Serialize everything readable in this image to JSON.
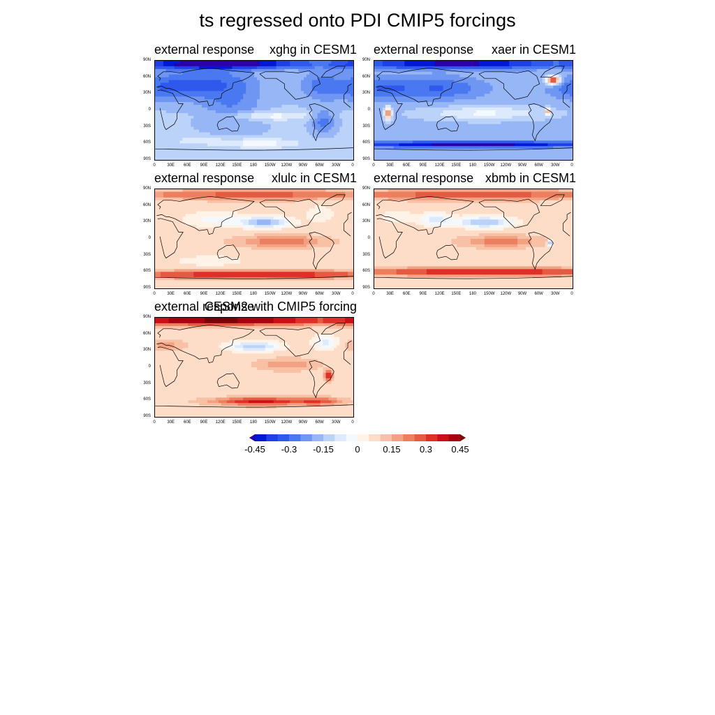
{
  "figure": {
    "title": "ts regressed onto PDI CMIP5 forcings"
  },
  "lat_ticks": [
    "90N",
    "60N",
    "30N",
    "0",
    "30S",
    "60S",
    "90S"
  ],
  "lon_ticks": [
    "0",
    "30E",
    "60E",
    "90E",
    "120E",
    "150E",
    "180",
    "150W",
    "120W",
    "90W",
    "60W",
    "30W",
    "0"
  ],
  "panels": [
    {
      "left_title": "external response",
      "right_title": "xghg in CESM1",
      "pattern": "ghg"
    },
    {
      "left_title": "external response",
      "right_title": "xaer in CESM1",
      "pattern": "aer"
    },
    {
      "left_title": "external response",
      "right_title": "xlulc in CESM1",
      "pattern": "lulc"
    },
    {
      "left_title": "external response",
      "right_title": "xbmb in CESM1",
      "pattern": "bmb"
    },
    {
      "left_title": "external response",
      "right_title": "CESM2 with CMIP5 forcing",
      "pattern": "cesm2"
    }
  ],
  "colorbar": {
    "levels": [
      -0.45,
      -0.4,
      -0.35,
      -0.3,
      -0.25,
      -0.2,
      -0.15,
      -0.1,
      -0.05,
      0,
      0.05,
      0.1,
      0.15,
      0.2,
      0.25,
      0.3,
      0.35,
      0.4,
      0.45
    ],
    "labels": [
      "-0.45",
      "-0.3",
      "-0.15",
      "0",
      "0.15",
      "0.3",
      "0.45"
    ],
    "colors": [
      "#2a00a8",
      "#0019d6",
      "#1f3fe8",
      "#2f59ec",
      "#4a78f0",
      "#6f96f3",
      "#97b6f6",
      "#bcd3f9",
      "#dde9fc",
      "#f4f9ff",
      "#fff3e8",
      "#fddcc8",
      "#f8c0a4",
      "#f2a182",
      "#ec7f60",
      "#e55a42",
      "#de2f28",
      "#cc0e18",
      "#a8000f",
      "#7a0008"
    ]
  }
}
